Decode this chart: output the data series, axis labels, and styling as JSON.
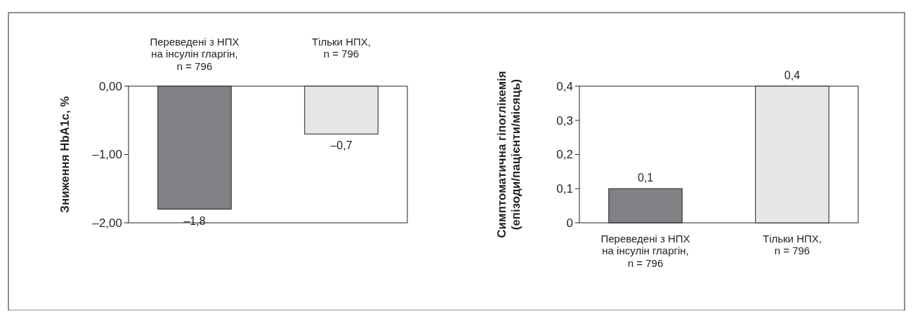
{
  "chart_data": [
    {
      "type": "bar",
      "ylabel": "Зниження HbA1c, %",
      "categories": [
        "Переведені з НПХ\nна інсулін гларгін,\nn = 796",
        "Тільки НПХ,\nn = 796"
      ],
      "values": [
        -1.8,
        -0.7
      ],
      "colors": [
        "#808285",
        "#e6e7e8"
      ],
      "value_labels": [
        "–1,8",
        "–0,7"
      ],
      "ylim": [
        -2,
        0
      ],
      "yticks": [
        {
          "value": 0,
          "label": "0,00"
        },
        {
          "value": -1,
          "label": "–1,00"
        },
        {
          "value": -2,
          "label": "–2,00"
        }
      ]
    },
    {
      "type": "bar",
      "ylabel": "Симптоматична гіпоглікемія\n(епізоди/пацієнти/місяць)",
      "categories": [
        "Переведені з НПХ\nна інсулін гларгін,\nn = 796",
        "Тільки НПХ,\nn = 796"
      ],
      "values": [
        0.1,
        0.4
      ],
      "colors": [
        "#808285",
        "#e6e7e8"
      ],
      "value_labels": [
        "0,1",
        "0,4"
      ],
      "ylim": [
        0,
        0.4
      ],
      "yticks": [
        0,
        {
          "value": 0.1,
          "label": "0,1"
        },
        {
          "value": 0.2,
          "label": "0,2"
        },
        {
          "value": 0.3,
          "label": "0,3"
        },
        {
          "value": 0.4,
          "label": "0,4"
        }
      ]
    }
  ]
}
